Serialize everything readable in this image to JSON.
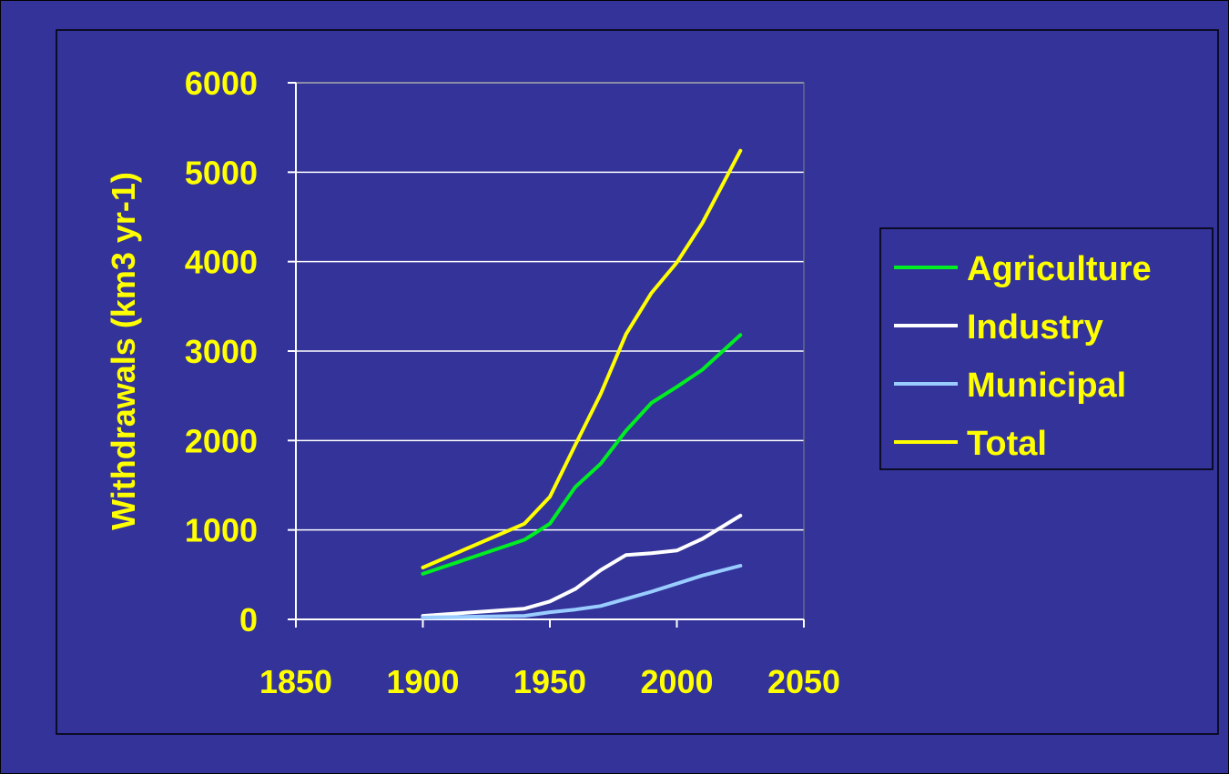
{
  "colors": {
    "background": "#333399",
    "text": "#FFFF00",
    "grid": "#FFFFFF",
    "axis": "#FFFFFF"
  },
  "chart_data": {
    "type": "line",
    "title": "",
    "xlabel": "",
    "ylabel": "Withdrawals (km3 yr-1)",
    "xlim": [
      1850,
      2050
    ],
    "ylim": [
      0,
      6000
    ],
    "xticks": [
      "1850",
      "1900",
      "1950",
      "2000",
      "2050"
    ],
    "yticks": [
      "0",
      "1000",
      "2000",
      "3000",
      "4000",
      "5000",
      "6000"
    ],
    "grid": "horizontal",
    "legend_position": "right",
    "series": [
      {
        "name": "Agriculture",
        "color": "#00EE22",
        "x": [
          1900,
          1940,
          1950,
          1960,
          1970,
          1980,
          1990,
          2000,
          2010,
          2025
        ],
        "values": [
          510,
          890,
          1070,
          1480,
          1740,
          2110,
          2420,
          2600,
          2790,
          3180
        ]
      },
      {
        "name": "Industry",
        "color": "#FFFFFF",
        "x": [
          1900,
          1940,
          1950,
          1960,
          1970,
          1980,
          1990,
          2000,
          2010,
          2025
        ],
        "values": [
          40,
          120,
          200,
          340,
          550,
          720,
          740,
          770,
          900,
          1160
        ]
      },
      {
        "name": "Municipal",
        "color": "#99CCFF",
        "x": [
          1900,
          1940,
          1950,
          1960,
          1970,
          1980,
          1990,
          2000,
          2010,
          2025
        ],
        "values": [
          20,
          40,
          80,
          110,
          150,
          230,
          310,
          400,
          490,
          600
        ]
      },
      {
        "name": "Total",
        "color": "#FFFF00",
        "x": [
          1900,
          1940,
          1950,
          1960,
          1970,
          1980,
          1990,
          2000,
          2010,
          2025
        ],
        "values": [
          580,
          1070,
          1370,
          1950,
          2520,
          3190,
          3650,
          3990,
          4430,
          5240
        ]
      }
    ]
  }
}
